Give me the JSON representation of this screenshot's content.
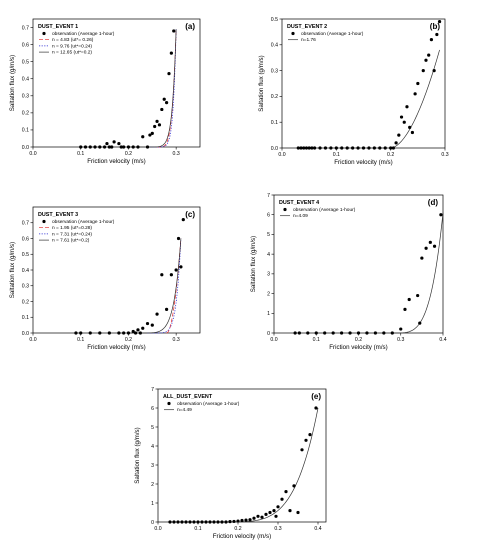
{
  "figure": {
    "background": "#ffffff"
  },
  "chart_data": [
    {
      "panel": "(a)",
      "title": "DUST_EVENT 1",
      "type": "scatter",
      "xlabel": "Friction velocity (m/s)",
      "ylabel": "Saltation flux (g/m/s)",
      "xlim": [
        0.0,
        0.35
      ],
      "ylim": [
        0.0,
        0.75
      ],
      "xticks": [
        "0.0",
        "0.1",
        "0.2",
        "0.3"
      ],
      "xtick_values": [
        0.0,
        0.1,
        0.2,
        0.3
      ],
      "yticks": [
        "0.0",
        "0.1",
        "0.2",
        "0.3",
        "0.4",
        "0.5",
        "0.6",
        "0.7"
      ],
      "ytick_values": [
        0.0,
        0.1,
        0.2,
        0.3,
        0.4,
        0.5,
        0.6,
        0.7
      ],
      "legend_position": "upper-left",
      "series": [
        {
          "name": "observation (Average 1-hour)",
          "kind": "points",
          "color": "#000000",
          "x": [
            0.1,
            0.11,
            0.12,
            0.13,
            0.14,
            0.15,
            0.155,
            0.16,
            0.165,
            0.17,
            0.18,
            0.185,
            0.19,
            0.2,
            0.21,
            0.22,
            0.23,
            0.24,
            0.245,
            0.25,
            0.255,
            0.26,
            0.265,
            0.27,
            0.275,
            0.28,
            0.285,
            0.29,
            0.295
          ],
          "y": [
            0.0,
            0.0,
            0.0,
            0.0,
            0.0,
            0.0,
            0.02,
            0.0,
            0.0,
            0.03,
            0.02,
            0.0,
            0.0,
            0.0,
            0.0,
            0.0,
            0.06,
            0.0,
            0.07,
            0.08,
            0.12,
            0.15,
            0.13,
            0.22,
            0.28,
            0.26,
            0.43,
            0.55,
            0.68
          ]
        },
        {
          "name": "n = 4.83 (ut*= 0.26)",
          "kind": "fit",
          "color": "#e02020",
          "dash": "dashed",
          "n": 4.83,
          "ut": 0.26,
          "xmax": 0.3,
          "ymax": 0.69
        },
        {
          "name": "n = 9.76 (ut*=0.24)",
          "kind": "fit",
          "color": "#2020d0",
          "dash": "dotted",
          "n": 9.76,
          "ut": 0.24,
          "xmax": 0.3,
          "ymax": 0.69
        },
        {
          "name": "n = 12.65 (ut*=0.2)",
          "kind": "fit",
          "color": "#333333",
          "dash": "solid",
          "n": 12.65,
          "ut": 0.2,
          "xmax": 0.3,
          "ymax": 0.69
        }
      ]
    },
    {
      "panel": "(b)",
      "title": "DUST_EVENT 2",
      "type": "scatter",
      "xlabel": "Friction velocity (m/s)",
      "ylabel": "Saltation flux (g/m/s)",
      "xlim": [
        0.0,
        0.3
      ],
      "ylim": [
        0.0,
        0.5
      ],
      "xticks": [
        "0.0",
        "0.1",
        "0.2",
        "0.3"
      ],
      "xtick_values": [
        0.0,
        0.1,
        0.2,
        0.3
      ],
      "yticks": [
        "0.0",
        "0.1",
        "0.2",
        "0.3",
        "0.4",
        "0.5"
      ],
      "ytick_values": [
        0.0,
        0.1,
        0.2,
        0.3,
        0.4,
        0.5
      ],
      "legend_position": "upper-left",
      "series": [
        {
          "name": "observation (Average 1-hour)",
          "kind": "points",
          "color": "#000000",
          "x": [
            0.03,
            0.035,
            0.04,
            0.045,
            0.05,
            0.055,
            0.06,
            0.07,
            0.08,
            0.09,
            0.1,
            0.11,
            0.12,
            0.13,
            0.14,
            0.15,
            0.16,
            0.17,
            0.18,
            0.19,
            0.2,
            0.205,
            0.21,
            0.215,
            0.22,
            0.225,
            0.23,
            0.235,
            0.24,
            0.245,
            0.25,
            0.26,
            0.265,
            0.27,
            0.275,
            0.28,
            0.285,
            0.29
          ],
          "y": [
            0.0,
            0.0,
            0.0,
            0.0,
            0.0,
            0.0,
            0.0,
            0.0,
            0.0,
            0.0,
            0.0,
            0.0,
            0.0,
            0.0,
            0.0,
            0.0,
            0.0,
            0.0,
            0.0,
            0.0,
            0.0,
            0.0,
            0.02,
            0.05,
            0.12,
            0.1,
            0.16,
            0.08,
            0.06,
            0.21,
            0.25,
            0.3,
            0.34,
            0.36,
            0.42,
            0.3,
            0.44,
            0.49
          ]
        },
        {
          "name": "n=1.76",
          "kind": "fit",
          "color": "#333333",
          "dash": "solid",
          "n": 1.76,
          "ut": 0.2,
          "xmax": 0.29,
          "ymax": 0.38
        }
      ]
    },
    {
      "panel": "(c)",
      "title": "DUST_EVENT 3",
      "type": "scatter",
      "xlabel": "Friction velocity (m/s)",
      "ylabel": "Saltation flux (g/m/s)",
      "xlim": [
        0.0,
        0.35
      ],
      "ylim": [
        0.0,
        0.8
      ],
      "xticks": [
        "0.0",
        "0.1",
        "0.2",
        "0.3"
      ],
      "xtick_values": [
        0.0,
        0.1,
        0.2,
        0.3
      ],
      "yticks": [
        "0.0",
        "0.1",
        "0.2",
        "0.3",
        "0.4",
        "0.5",
        "0.6",
        "0.7"
      ],
      "ytick_values": [
        0.0,
        0.1,
        0.2,
        0.3,
        0.4,
        0.5,
        0.6,
        0.7
      ],
      "legend_position": "upper-left",
      "series": [
        {
          "name": "observation (Average 1-hour)",
          "kind": "points",
          "color": "#000000",
          "x": [
            0.09,
            0.1,
            0.12,
            0.14,
            0.16,
            0.18,
            0.19,
            0.2,
            0.21,
            0.215,
            0.22,
            0.225,
            0.23,
            0.24,
            0.25,
            0.26,
            0.27,
            0.28,
            0.29,
            0.3,
            0.305,
            0.31,
            0.315
          ],
          "y": [
            0.0,
            0.0,
            0.0,
            0.0,
            0.0,
            0.0,
            0.0,
            0.0,
            0.01,
            0.0,
            0.02,
            0.0,
            0.03,
            0.06,
            0.05,
            0.12,
            0.37,
            0.15,
            0.37,
            0.4,
            0.6,
            0.42,
            0.72
          ]
        },
        {
          "name": "n = 1.95 (ut*=0.28)",
          "kind": "fit",
          "color": "#e02020",
          "dash": "dashed",
          "n": 1.95,
          "ut": 0.28,
          "xmax": 0.31,
          "ymax": 0.6
        },
        {
          "name": "n = 7.31 (ut*=0.24)",
          "kind": "fit",
          "color": "#2020d0",
          "dash": "dotted",
          "n": 7.31,
          "ut": 0.24,
          "xmax": 0.31,
          "ymax": 0.6
        },
        {
          "name": "n = 7.61 (ut*=0.2)",
          "kind": "fit",
          "color": "#333333",
          "dash": "solid",
          "n": 7.61,
          "ut": 0.2,
          "xmax": 0.31,
          "ymax": 0.6
        }
      ]
    },
    {
      "panel": "(d)",
      "title": "DUST_EVENT 4",
      "type": "scatter",
      "xlabel": "Friction velocity (m/s)",
      "ylabel": "Saltation flux (g/m/s)",
      "xlim": [
        0.0,
        0.4
      ],
      "ylim": [
        0.0,
        7.0
      ],
      "xticks": [
        "0.0",
        "0.1",
        "0.2",
        "0.3",
        "0.4"
      ],
      "xtick_values": [
        0.0,
        0.1,
        0.2,
        0.3,
        0.4
      ],
      "yticks": [
        "0",
        "1",
        "2",
        "3",
        "4",
        "5",
        "6",
        "7"
      ],
      "ytick_values": [
        0,
        1,
        2,
        3,
        4,
        5,
        6,
        7
      ],
      "legend_position": "upper-left",
      "series": [
        {
          "name": "observation (Average 1-hour)",
          "kind": "points",
          "color": "#000000",
          "x": [
            0.05,
            0.06,
            0.08,
            0.1,
            0.12,
            0.14,
            0.16,
            0.18,
            0.2,
            0.22,
            0.24,
            0.26,
            0.28,
            0.3,
            0.31,
            0.32,
            0.34,
            0.345,
            0.35,
            0.36,
            0.37,
            0.38,
            0.395
          ],
          "y": [
            0.0,
            0.0,
            0.0,
            0.0,
            0.0,
            0.0,
            0.0,
            0.0,
            0.0,
            0.0,
            0.0,
            0.0,
            0.0,
            0.2,
            1.2,
            1.7,
            1.9,
            0.5,
            3.8,
            4.3,
            4.6,
            4.4,
            6.0
          ]
        },
        {
          "name": "n=4.09",
          "kind": "fit",
          "color": "#333333",
          "dash": "solid",
          "n": 4.09,
          "ut": 0.28,
          "xmax": 0.4,
          "ymax": 6.1
        }
      ]
    },
    {
      "panel": "(e)",
      "title": "ALL_DUST_EVENT",
      "type": "scatter",
      "xlabel": "Friction velocity (m/s)",
      "ylabel": "Saltation flux (g/m/s)",
      "xlim": [
        0.0,
        0.42
      ],
      "ylim": [
        0.0,
        7.0
      ],
      "xticks": [
        "0.0",
        "0.1",
        "0.2",
        "0.3",
        "0.4"
      ],
      "xtick_values": [
        0.0,
        0.1,
        0.2,
        0.3,
        0.4
      ],
      "yticks": [
        "0",
        "1",
        "2",
        "3",
        "4",
        "5",
        "6",
        "7"
      ],
      "ytick_values": [
        0,
        1,
        2,
        3,
        4,
        5,
        6,
        7
      ],
      "legend_position": "upper-left",
      "series": [
        {
          "name": "observation (Average 1-hour)",
          "kind": "points",
          "color": "#000000",
          "x": [
            0.03,
            0.04,
            0.05,
            0.06,
            0.07,
            0.08,
            0.09,
            0.1,
            0.11,
            0.12,
            0.13,
            0.14,
            0.15,
            0.16,
            0.17,
            0.18,
            0.19,
            0.2,
            0.21,
            0.22,
            0.23,
            0.24,
            0.25,
            0.26,
            0.27,
            0.28,
            0.29,
            0.295,
            0.3,
            0.31,
            0.32,
            0.33,
            0.34,
            0.35,
            0.36,
            0.37,
            0.38,
            0.395
          ],
          "y": [
            0.0,
            0.0,
            0.0,
            0.0,
            0.0,
            0.0,
            0.0,
            0.0,
            0.0,
            0.0,
            0.0,
            0.0,
            0.0,
            0.0,
            0.0,
            0.02,
            0.03,
            0.05,
            0.08,
            0.1,
            0.12,
            0.2,
            0.3,
            0.25,
            0.4,
            0.5,
            0.6,
            0.3,
            0.8,
            1.2,
            1.6,
            0.6,
            1.9,
            0.5,
            3.8,
            4.3,
            4.6,
            6.0
          ]
        },
        {
          "name": "n=4.49",
          "kind": "fit",
          "color": "#333333",
          "dash": "solid",
          "n": 4.49,
          "ut": 0.15,
          "xmax": 0.4,
          "ymax": 6.0
        }
      ]
    }
  ]
}
